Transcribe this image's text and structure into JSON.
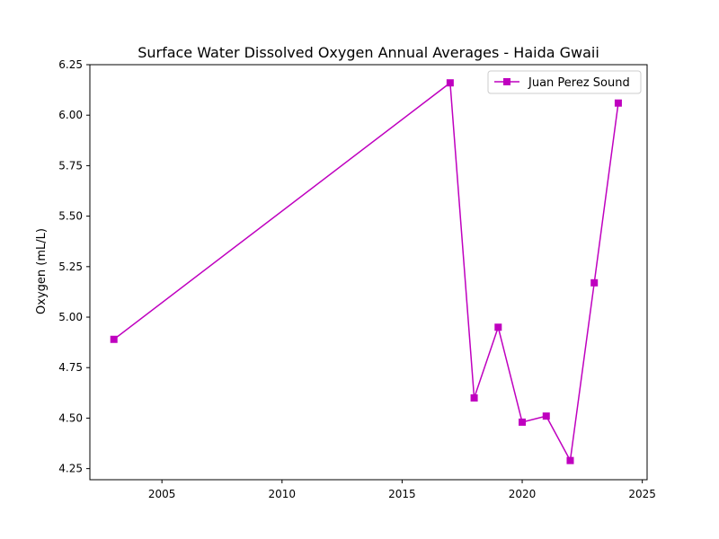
{
  "chart_data": {
    "type": "line",
    "title": "Surface Water Dissolved Oxygen Annual Averages - Haida Gwaii",
    "xlabel": "",
    "ylabel": "Oxygen (mL/L)",
    "xlim": [
      2002.0,
      2025.2
    ],
    "ylim": [
      4.195,
      6.25
    ],
    "xticks": [
      2005,
      2010,
      2015,
      2020,
      2025
    ],
    "yticks": [
      4.25,
      4.5,
      4.75,
      5.0,
      5.25,
      5.5,
      5.75,
      6.0,
      6.25
    ],
    "yticklabels": [
      "4.25",
      "4.50",
      "4.75",
      "5.00",
      "5.25",
      "5.50",
      "5.75",
      "6.00",
      "6.25"
    ],
    "grid": false,
    "legend_position": "top-right",
    "series": [
      {
        "name": "Juan Perez Sound",
        "color": "#bf00bf",
        "marker": "square",
        "x": [
          2003,
          2017,
          2018,
          2019,
          2020,
          2021,
          2022,
          2023,
          2024
        ],
        "y": [
          4.89,
          6.16,
          4.6,
          4.95,
          4.48,
          4.51,
          4.29,
          5.17,
          6.06
        ]
      }
    ]
  }
}
